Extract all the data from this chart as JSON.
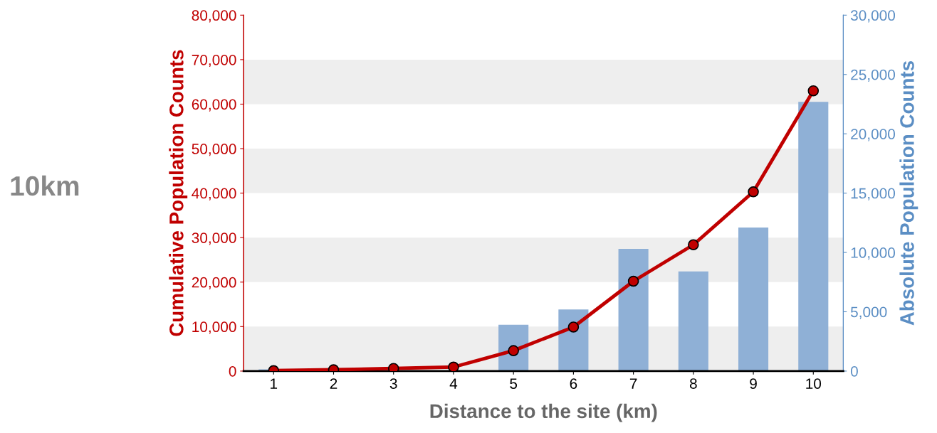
{
  "chart_data": {
    "type": "bar",
    "xlabel": "Distance to the site (km)",
    "ylabel": "Cumulative Population Counts",
    "y2label": "Absolute Population Counts",
    "categories": [
      "1",
      "2",
      "3",
      "4",
      "5",
      "6",
      "7",
      "8",
      "9",
      "10"
    ],
    "series": [
      {
        "axis": "y2",
        "color": "#8fb0d6",
        "values": [
          150,
          null,
          null,
          null,
          3900,
          5200,
          10300,
          8400,
          12100,
          22700
        ]
      },
      {
        "type": "line",
        "axis": "y",
        "color": "#c00000",
        "marker": "circle",
        "values": [
          100,
          300,
          600,
          900,
          4600,
          9900,
          20200,
          28400,
          40300,
          63000
        ]
      }
    ],
    "ylim": [
      0,
      80000
    ],
    "yticks": [
      {
        "value": 0,
        "label": "0"
      },
      {
        "value": 10000,
        "label": "10,000"
      },
      {
        "value": 20000,
        "label": "20,000"
      },
      {
        "value": 30000,
        "label": "30,000"
      },
      {
        "value": 40000,
        "label": "40,000"
      },
      {
        "value": 50000,
        "label": "50,000"
      },
      {
        "value": 60000,
        "label": "60,000"
      },
      {
        "value": 70000,
        "label": "70,000"
      },
      {
        "value": 80000,
        "label": "80,000"
      }
    ],
    "y2lim": [
      0,
      30000
    ],
    "y2ticks": [
      {
        "value": 0,
        "label": "0"
      },
      {
        "value": 5000,
        "label": "5,000"
      },
      {
        "value": 10000,
        "label": "10,000"
      },
      {
        "value": 15000,
        "label": "15,000"
      },
      {
        "value": 20000,
        "label": "20,000"
      },
      {
        "value": 25000,
        "label": "25,000"
      },
      {
        "value": 30000,
        "label": "30,000"
      }
    ],
    "bands": [
      {
        "axis": "y",
        "from": 0,
        "to": 10000,
        "color": "#eeeeee"
      },
      {
        "axis": "y",
        "from": 20000,
        "to": 30000,
        "color": "#eeeeee"
      },
      {
        "axis": "y",
        "from": 40000,
        "to": 50000,
        "color": "#eeeeee"
      },
      {
        "axis": "y",
        "from": 60000,
        "to": 70000,
        "color": "#eeeeee"
      }
    ],
    "annotations": [
      "10km"
    ]
  }
}
